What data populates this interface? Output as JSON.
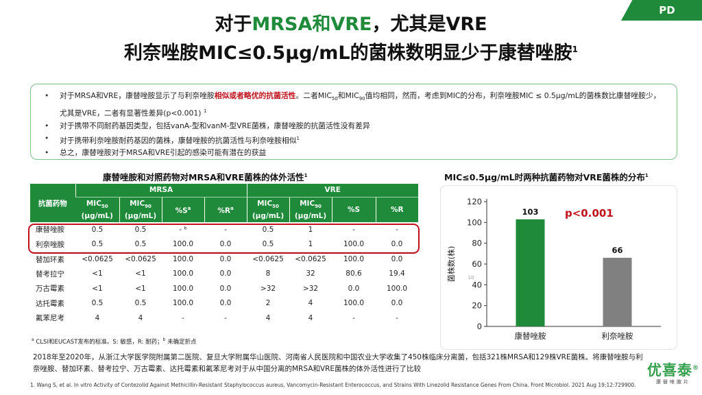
{
  "corner_tag": "PD",
  "title": {
    "line1_pre": "对于",
    "line1_green": "MRSA和VRE",
    "line1_post": "，尤其是VRE",
    "line2": "利奈唑胺MIC≤0.5µg/mL的菌株数明显少于康替唑胺",
    "line2_sup": "1"
  },
  "summary": {
    "b1_a": "对于MRSA和VRE，康替唑胺显示了与利奈唑胺",
    "b1_red": "相似或者略优的抗菌活性",
    "b1_b": "。二者MIC",
    "b1_sub50": "50",
    "b1_c": "和MIC",
    "b1_sub90": "90",
    "b1_d": "值均相同，然而，考虑到MIC的分布，利奈唑胺MIC ≤ 0.5µg/mL的菌株数比康替唑胺少，尤其是VRE，二者有显著性差异(p<0.001)",
    "b1_sup": "1",
    "b2": "对于携带不同耐药基因类型，包括vanA-型和vanM-型VRE菌株，康替唑胺的抗菌活性没有差异",
    "b3": "对于携带利奈唑胺耐药基因的菌株，康替唑胺的抗菌活性与利奈唑胺相似",
    "b3_sup": "1",
    "b4": "总之，康替唑胺对于MRSA和VRE引起的感染可能有潜在的获益"
  },
  "table_title": "康替唑胺和对照药物对MRSA和VRE菌株的体外活性",
  "table_title_sup": "1",
  "table": {
    "col_drug": "抗菌药物",
    "group_mrsa": "MRSA",
    "group_vre": "VRE",
    "mic_prefix": "MIC",
    "sub50": "50",
    "sub90": "90",
    "mic_unit": "(µg/mL)",
    "pct_s": "%S",
    "pct_r": "%R",
    "sup_a": "a",
    "rows": [
      [
        "康替唑胺",
        "0.5",
        "0.5",
        "- ᵇ",
        "-",
        "0.5",
        "1",
        "-",
        "-"
      ],
      [
        "利奈唑胺",
        "0.5",
        "0.5",
        "100.0",
        "0.0",
        "0.5",
        "1",
        "100.0",
        "0.0"
      ],
      [
        "替加环素",
        "<0.0625",
        "<0.0625",
        "100.0",
        "0.0",
        "<0.0625",
        "<0.0625",
        "100.0",
        "0.0"
      ],
      [
        "替考拉宁",
        "<1",
        "<1",
        "100.0",
        "0.0",
        "8",
        "32",
        "80.6",
        "19.4"
      ],
      [
        "万古霉素",
        "<1",
        "<1",
        "100.0",
        "0.0",
        ">32",
        ">32",
        "0.0",
        "100.0"
      ],
      [
        "达托霉素",
        "0.5",
        "0.5",
        "100.0",
        "0.0",
        "2",
        "4",
        "100.0",
        "0.0"
      ],
      [
        "氟苯尼考",
        "4",
        "4",
        "-",
        "-",
        "4",
        "4",
        "-",
        "-"
      ]
    ]
  },
  "footnote": {
    "sup_a": "a",
    "text_a": " CLSI和EUCAST发布的标准。S: 敏感，R: 耐药；",
    "sup_b": "b",
    "text_b": " 未确定折点"
  },
  "paragraph": "2018年至2020年，从浙江大学医学院附属第二医院、复旦大学附属华山医院、河南省人民医院和中国农业大学收集了450株临床分离菌，包括321株MRSA和129株VRE菌株。将康替唑胺与利奈唑胺、替加环素、替考拉宁、万古霉素、达托霉素和氟苯尼考对于从中国分离的MRSA和VRE菌株的体外活性进行了比较",
  "reference": "1. Wang S, et al. In vitro Activity of Contezolid Against Methicillin-Resistant Staphylococcus aureus, Vancomycin-Resistant Enterococcus, and Strains With Linezolid Resistance Genes From China. Front Microbiol. 2021 Aug 19;12:729900.",
  "chart_title": "MIC≤0.5µg/mL时两种抗菌药物对VRE菌株的分布",
  "chart_title_sup": "1",
  "chart_pvalue": "p<0.001",
  "chart_stray_label": "10",
  "chart_data": {
    "type": "bar",
    "title": "MIC≤0.5µg/mL时两种抗菌药物对VRE菌株的分布",
    "categories": [
      "康替唑胺",
      "利奈唑胺"
    ],
    "values": [
      103,
      66
    ],
    "ylabel": "菌株数(株)",
    "xlabel": "",
    "ylim": [
      0,
      120
    ],
    "yticks": [
      0,
      20,
      40,
      60,
      80,
      100,
      120
    ],
    "bar_colors": [
      "#1e8a3a",
      "#808080"
    ],
    "annotation": "p<0.001",
    "grid": false
  },
  "brand": {
    "name": "优喜泰",
    "reg": "®",
    "sub": "康替唑胺片"
  },
  "colors": {
    "primary_green": "#1e8a3a",
    "accent_red": "#c0101c",
    "bar_gray": "#808080"
  }
}
